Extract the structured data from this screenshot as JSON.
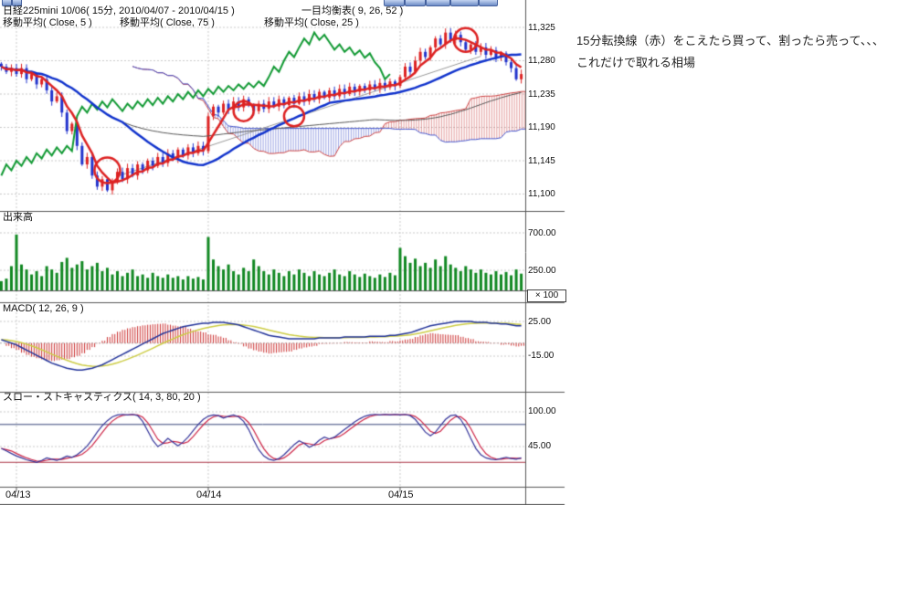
{
  "annotation": {
    "line1": "15分転換線（赤）をこえたら買って、割ったら売って、、、",
    "line2": "これだけで取れる相場"
  },
  "chart_data": {
    "type": "candlestick",
    "title": "日経225mini 10/06( 15分, 2010/04/07 - 2010/04/15 )",
    "overlay_label": "一目均衡表( 9, 26, 52 )",
    "ma_labels": [
      "移動平均( Close, 5 )",
      "移動平均( Close, 75 )",
      "移動平均( Close, 25 )"
    ],
    "panels": {
      "volume_label": "出来高",
      "volume_unit": "× 100",
      "macd_label": "MACD( 12, 26, 9 )",
      "stoch_label": "スロー・ストキャスティクス( 14, 3, 80, 20 )"
    },
    "x_axis": {
      "dates": [
        "04/13",
        "04/14",
        "04/15"
      ],
      "day_start_bars": [
        3,
        41,
        79
      ]
    },
    "y_axis": {
      "price_ticks": [
        "11,325",
        "11,280",
        "11,235",
        "11,190",
        "11,145",
        "11,100"
      ],
      "price_tick_values": [
        11325,
        11280,
        11235,
        11190,
        11145,
        11100
      ],
      "volume_ticks": [
        "700.00",
        "250.00"
      ],
      "volume_tick_values": [
        700,
        250
      ],
      "macd_ticks": [
        "25.00",
        "-15.00"
      ],
      "macd_tick_values": [
        25,
        -15
      ],
      "stoch_ticks": [
        "100.00",
        "45.00"
      ],
      "stoch_tick_values": [
        100,
        45
      ]
    },
    "close": [
      11272,
      11265,
      11270,
      11262,
      11270,
      11255,
      11262,
      11248,
      11255,
      11240,
      11225,
      11232,
      11210,
      11185,
      11195,
      11165,
      11140,
      11150,
      11125,
      11110,
      11120,
      11105,
      11118,
      11130,
      11120,
      11135,
      11125,
      11140,
      11132,
      11145,
      11138,
      11150,
      11142,
      11155,
      11148,
      11160,
      11152,
      11163,
      11155,
      11165,
      11158,
      11205,
      11218,
      11210,
      11222,
      11214,
      11225,
      11217,
      11228,
      11220,
      11212,
      11222,
      11215,
      11225,
      11218,
      11228,
      11220,
      11230,
      11222,
      11232,
      11225,
      11235,
      11228,
      11238,
      11230,
      11240,
      11232,
      11242,
      11235,
      11245,
      11238,
      11246,
      11240,
      11248,
      11242,
      11250,
      11244,
      11252,
      11246,
      11258,
      11272,
      11265,
      11280,
      11292,
      11285,
      11298,
      11310,
      11302,
      11318,
      11308,
      11315,
      11305,
      11295,
      11302,
      11292,
      11298,
      11288,
      11294,
      11284,
      11290,
      11278,
      11270,
      11255,
      11262
    ],
    "volume": [
      120,
      150,
      300,
      680,
      320,
      260,
      200,
      240,
      180,
      300,
      260,
      220,
      350,
      400,
      280,
      320,
      360,
      260,
      300,
      340,
      240,
      280,
      200,
      240,
      180,
      220,
      260,
      180,
      200,
      160,
      220,
      180,
      160,
      200,
      160,
      180,
      140,
      180,
      150,
      170,
      140,
      650,
      380,
      300,
      260,
      320,
      240,
      200,
      280,
      240,
      380,
      300,
      240,
      200,
      260,
      220,
      180,
      240,
      200,
      260,
      220,
      180,
      240,
      200,
      180,
      220,
      260,
      200,
      180,
      240,
      200,
      170,
      210,
      180,
      160,
      200,
      170,
      220,
      190,
      520,
      420,
      340,
      390,
      300,
      340,
      280,
      380,
      300,
      420,
      320,
      280,
      240,
      300,
      260,
      220,
      260,
      220,
      200,
      240,
      200,
      230,
      190,
      260,
      210
    ],
    "macd": [
      4,
      2,
      0,
      -2,
      -5,
      -8,
      -11,
      -14,
      -17,
      -20,
      -23,
      -25,
      -27,
      -29,
      -30,
      -31,
      -31,
      -30,
      -29,
      -27,
      -25,
      -22,
      -19,
      -16,
      -13,
      -10,
      -7,
      -4,
      -1,
      2,
      5,
      8,
      11,
      13,
      15,
      17,
      19,
      20,
      21,
      22,
      23,
      23,
      24,
      24,
      24,
      23,
      22,
      21,
      19,
      17,
      15,
      13,
      11,
      9,
      8,
      7,
      6,
      5,
      5,
      5,
      5,
      5,
      5,
      6,
      6,
      6,
      6,
      6,
      7,
      7,
      7,
      7,
      7,
      8,
      8,
      8,
      8,
      9,
      9,
      10,
      11,
      12,
      14,
      16,
      18,
      20,
      21,
      22,
      23,
      24,
      25,
      25,
      25,
      25,
      24,
      24,
      24,
      23,
      23,
      22,
      22,
      21,
      20,
      20
    ],
    "stoch_k": [
      42,
      38,
      34,
      30,
      27,
      24,
      22,
      20,
      23,
      27,
      25,
      23,
      26,
      30,
      28,
      32,
      38,
      46,
      56,
      68,
      78,
      86,
      92,
      95,
      96,
      95,
      96,
      94,
      85,
      70,
      55,
      45,
      50,
      58,
      52,
      46,
      52,
      60,
      70,
      80,
      88,
      93,
      95,
      94,
      90,
      93,
      95,
      92,
      85,
      72,
      55,
      40,
      30,
      25,
      23,
      26,
      32,
      40,
      48,
      54,
      50,
      44,
      48,
      55,
      60,
      57,
      60,
      66,
      72,
      78,
      84,
      89,
      93,
      95,
      96,
      95,
      96,
      95,
      96,
      95,
      96,
      94,
      88,
      78,
      68,
      62,
      68,
      78,
      88,
      94,
      95,
      88,
      75,
      58,
      42,
      32,
      27,
      25,
      24,
      26,
      28,
      26,
      25,
      27
    ],
    "annotations": {
      "circles": [
        {
          "bar": 21,
          "price": 11132,
          "r": 14
        },
        {
          "bar": 48,
          "price": 11212,
          "r": 11
        },
        {
          "bar": 58,
          "price": 11205,
          "r": 11
        },
        {
          "bar": 92,
          "price": 11308,
          "r": 13
        }
      ],
      "trendline": {
        "from": {
          "bar": 23,
          "price": 11124
        },
        "to": {
          "bar": 95,
          "price": 11286
        }
      }
    },
    "colors": {
      "up_candle": "#dd2222",
      "down_candle": "#2233cc",
      "ma5": "#dd2222",
      "ma25": "#1133cc",
      "ma75": "#555555",
      "chikou": "#119933",
      "cloud_bull": "#cc4444",
      "cloud_bear": "#4455cc",
      "volume": "#118822",
      "macd_line": "#223399",
      "macd_signal": "#cccc44",
      "macd_hist": "#cc3333",
      "stoch_k": "#333399",
      "stoch_d": "#cc2244",
      "circle": "#dd2222"
    }
  }
}
